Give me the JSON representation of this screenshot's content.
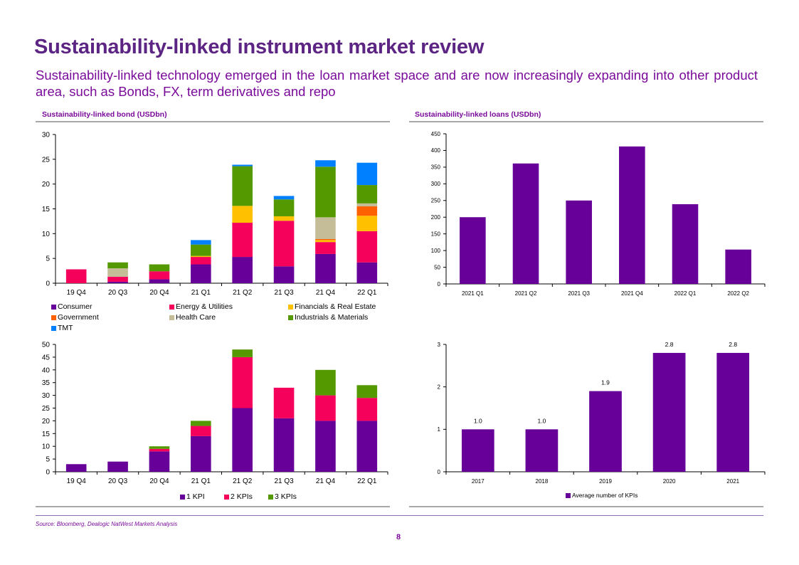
{
  "page": {
    "title": "Sustainability-linked instrument market review",
    "subtitle": "Sustainability-linked technology emerged in the loan market space and are now increasingly expanding into other product area, such as Bonds, FX, term derivatives and repo",
    "source": "Source: Bloomberg,  Dealogic NatWest Markets Analysis",
    "page_number": "8"
  },
  "panels": {
    "bond_title": "Sustainability-linked  bond (USDbn)",
    "loans_title": "Sustainability-linked  loans (USDbn)"
  },
  "colors": {
    "purple": "#660099",
    "pink": "#f5005a",
    "gold": "#ffc000",
    "orange": "#ff6000",
    "khaki": "#c5bd98",
    "green": "#559900",
    "blue": "#0080ff",
    "title": "#5c2483"
  },
  "chart_data": [
    {
      "id": "bond_by_sector",
      "type": "bar",
      "stacked": true,
      "title": "Sustainability-linked  bond (USDbn)",
      "xlabel": "",
      "ylabel": "",
      "categories": [
        "19 Q4",
        "20 Q3",
        "20 Q4",
        "21 Q1",
        "21 Q2",
        "21 Q3",
        "21 Q4",
        "22 Q1"
      ],
      "ylim": [
        0,
        30
      ],
      "yticks": [
        0,
        5,
        10,
        15,
        20,
        25,
        30
      ],
      "grid": false,
      "legend_position": "bottom",
      "series": [
        {
          "name": "Consumer",
          "color": "#660099",
          "values": [
            0,
            0.3,
            0.8,
            3.8,
            5.3,
            3.4,
            5.9,
            4.2
          ]
        },
        {
          "name": "Energy & Utilities",
          "color": "#f5005a",
          "values": [
            2.8,
            1.0,
            1.6,
            1.5,
            6.9,
            9.2,
            2.4,
            6.3
          ]
        },
        {
          "name": "Financials & Real Estate",
          "color": "#ffc000",
          "values": [
            0,
            0,
            0,
            0.2,
            3.4,
            0.9,
            0.4,
            3.1
          ]
        },
        {
          "name": "Government",
          "color": "#ff6000",
          "values": [
            0,
            0,
            0,
            0,
            0,
            0,
            0.2,
            1.9
          ]
        },
        {
          "name": "Health Care",
          "color": "#c5bd98",
          "values": [
            0,
            1.7,
            0,
            0,
            0,
            0,
            4.4,
            0.6
          ]
        },
        {
          "name": "Industrials & Materials",
          "color": "#559900",
          "values": [
            0,
            1.2,
            1.4,
            2.3,
            8.0,
            3.4,
            10.2,
            3.7
          ]
        },
        {
          "name": "TMT",
          "color": "#0080ff",
          "values": [
            0,
            0,
            0,
            0.9,
            0.3,
            0.7,
            1.3,
            4.5
          ]
        }
      ]
    },
    {
      "id": "loans",
      "type": "bar",
      "title": "Sustainability-linked  loans (USDbn)",
      "xlabel": "",
      "ylabel": "",
      "categories": [
        "2021 Q1",
        "2021 Q2",
        "2021 Q3",
        "2021 Q4",
        "2022 Q1",
        "2022 Q2"
      ],
      "values": [
        200,
        361,
        250,
        412,
        239,
        103
      ],
      "ylim": [
        0,
        450
      ],
      "yticks": [
        0,
        50,
        100,
        150,
        200,
        250,
        300,
        350,
        400,
        450
      ],
      "grid": false,
      "color": "#660099"
    },
    {
      "id": "bond_by_kpi_count",
      "type": "bar",
      "stacked": true,
      "title": "",
      "xlabel": "",
      "ylabel": "",
      "categories": [
        "19 Q4",
        "20 Q3",
        "20 Q4",
        "21 Q1",
        "21 Q2",
        "21 Q3",
        "21 Q4",
        "22 Q1"
      ],
      "ylim": [
        0,
        50
      ],
      "yticks": [
        0,
        5,
        10,
        15,
        20,
        25,
        30,
        35,
        40,
        45,
        50
      ],
      "grid": false,
      "legend_position": "bottom",
      "series": [
        {
          "name": "1 KPI",
          "color": "#660099",
          "values": [
            3,
            4,
            8,
            14,
            25,
            21,
            20,
            20
          ]
        },
        {
          "name": "2 KPIs",
          "color": "#f5005a",
          "values": [
            0,
            0,
            1,
            4,
            20,
            12,
            10,
            9
          ]
        },
        {
          "name": "3 KPIs",
          "color": "#559900",
          "values": [
            0,
            0,
            1,
            2,
            3,
            0,
            10,
            5
          ]
        }
      ]
    },
    {
      "id": "avg_kpis",
      "type": "bar",
      "title": "",
      "xlabel": "",
      "ylabel": "",
      "categories": [
        "2017",
        "2018",
        "2019",
        "2020",
        "2021"
      ],
      "values": [
        1.0,
        1.0,
        1.9,
        2.8,
        2.8
      ],
      "data_labels": [
        "1.0",
        "1.0",
        "1.9",
        "2.8",
        "2.8"
      ],
      "ylim": [
        0,
        3
      ],
      "yticks": [
        0,
        1,
        2,
        3
      ],
      "grid": false,
      "legend_position": "bottom",
      "legend": [
        "Average number of KPIs"
      ],
      "color": "#660099"
    }
  ]
}
